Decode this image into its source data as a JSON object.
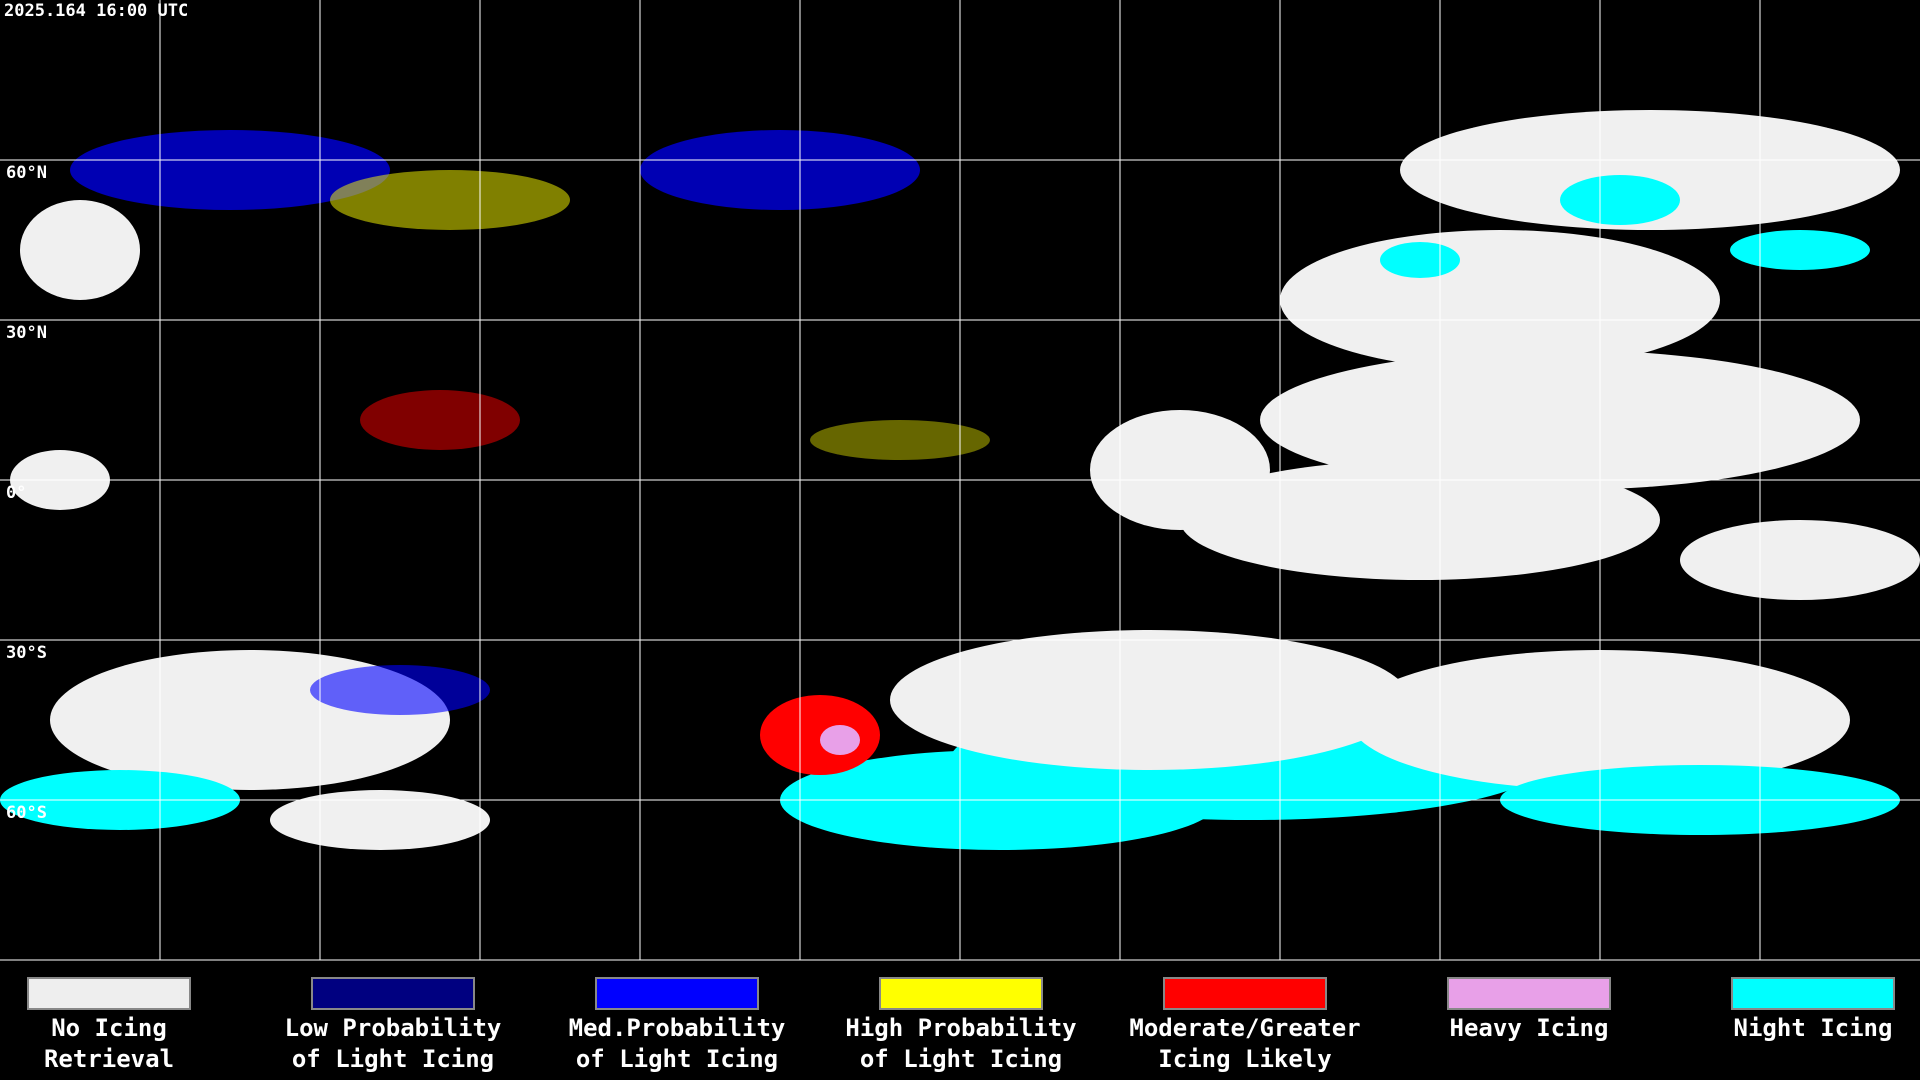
{
  "header": {
    "timestamp": "2025.164 16:00 UTC"
  },
  "grid_labels": [
    "60°N",
    "30°N",
    "0°",
    "30°S",
    "60°S"
  ],
  "legend": [
    {
      "color": "#eeeeee",
      "lines": [
        "No Icing",
        "Retrieval"
      ]
    },
    {
      "color": "#000080",
      "lines": [
        "Low Probability",
        "of Light Icing"
      ]
    },
    {
      "color": "#0000ff",
      "lines": [
        "Med.Probability",
        "of Light Icing"
      ]
    },
    {
      "color": "#ffff00",
      "lines": [
        "High Probability",
        "of Light Icing"
      ]
    },
    {
      "color": "#ff0000",
      "lines": [
        "Moderate/Greater",
        "Icing Likely"
      ]
    },
    {
      "color": "#e8a0e8",
      "lines": [
        "Heavy Icing"
      ]
    },
    {
      "color": "#00ffff",
      "lines": [
        "Night Icing"
      ]
    }
  ]
}
